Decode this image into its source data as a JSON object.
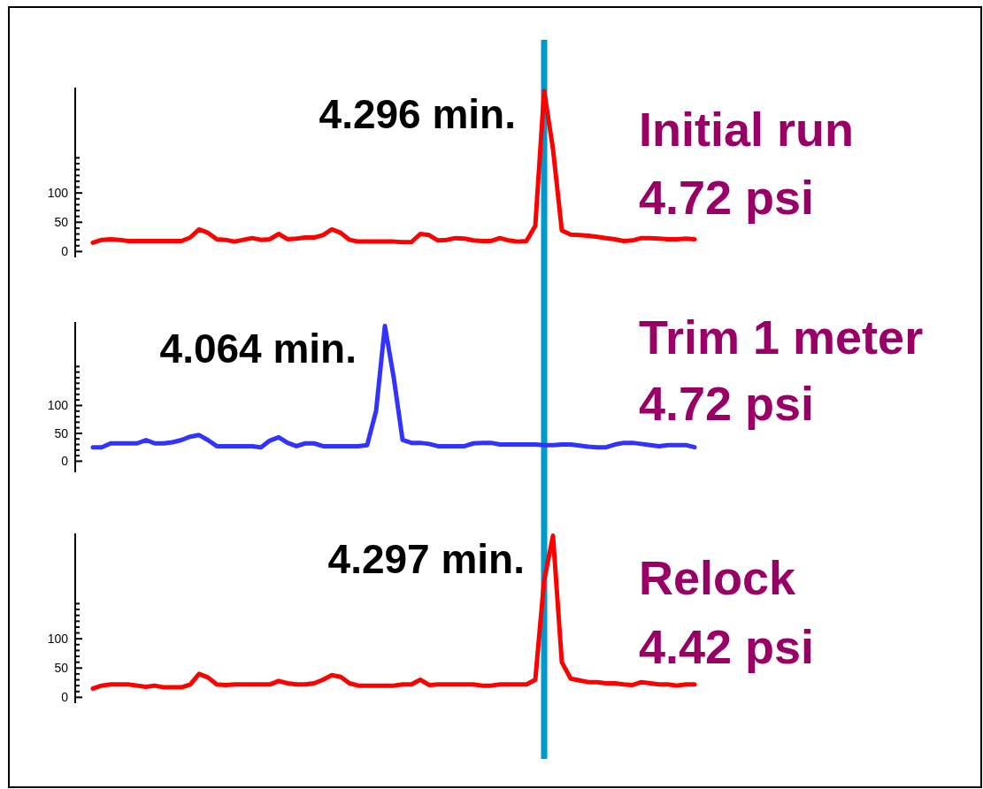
{
  "chart_data": [
    {
      "type": "line",
      "categories": [
        null,
        null,
        null,
        null,
        null,
        null,
        null,
        null,
        null,
        null,
        null,
        null,
        null,
        null,
        null,
        null,
        null,
        null,
        null,
        null,
        null,
        null,
        null,
        null,
        null,
        null,
        null,
        null,
        null,
        null,
        null,
        null,
        null,
        null,
        null,
        null,
        null,
        null,
        null,
        null,
        null,
        null,
        null,
        null,
        null,
        null,
        null,
        null,
        null,
        null,
        null,
        null,
        null,
        null,
        null,
        null,
        null,
        null,
        null,
        null,
        null,
        null,
        null,
        null,
        null,
        null,
        null,
        null,
        null
      ],
      "series": [
        {
          "color": "#ff0000",
          "values": [
            15,
            20,
            21,
            20,
            18,
            18,
            18,
            18,
            18,
            18,
            18,
            24,
            38,
            32,
            21,
            20,
            17,
            20,
            23,
            20,
            21,
            30,
            21,
            22,
            24,
            24,
            28,
            38,
            32,
            20,
            17,
            17,
            17,
            17,
            17,
            16,
            16,
            30,
            28,
            19,
            20,
            23,
            22,
            19,
            18,
            18,
            23,
            19,
            17,
            18,
            44,
            274,
            175,
            36,
            29,
            28,
            27,
            25,
            23,
            21,
            18,
            19,
            23,
            23,
            22,
            21,
            21,
            22,
            21
          ]
        }
      ],
      "ylim": [
        -10,
        280
      ],
      "yticks": [
        0,
        {
          "value": 10,
          "label": null
        },
        {
          "value": 20,
          "label": null
        },
        {
          "value": 30,
          "label": null
        },
        {
          "value": 40,
          "label": null
        },
        50,
        {
          "value": 60,
          "label": null
        },
        {
          "value": 70,
          "label": null
        },
        {
          "value": 80,
          "label": null
        },
        {
          "value": 90,
          "label": null
        },
        100,
        {
          "value": 110,
          "label": null
        },
        {
          "value": 120,
          "label": null
        },
        {
          "value": 130,
          "label": null
        },
        {
          "value": 140,
          "label": null
        },
        {
          "value": 150,
          "label": null
        },
        {
          "value": 160,
          "label": null
        }
      ],
      "tick_labels": "y",
      "annotations": [
        "4.296 min.",
        "Initial run",
        "4.72 psi"
      ]
    },
    {
      "type": "line",
      "categories": [
        null,
        null,
        null,
        null,
        null,
        null,
        null,
        null,
        null,
        null,
        null,
        null,
        null,
        null,
        null,
        null,
        null,
        null,
        null,
        null,
        null,
        null,
        null,
        null,
        null,
        null,
        null,
        null,
        null,
        null,
        null,
        null,
        null,
        null,
        null,
        null,
        null,
        null,
        null,
        null,
        null,
        null,
        null,
        null,
        null,
        null,
        null,
        null,
        null,
        null,
        null,
        null,
        null,
        null,
        null,
        null,
        null,
        null,
        null,
        null,
        null,
        null,
        null,
        null,
        null,
        null,
        null,
        null,
        null
      ],
      "series": [
        {
          "color": "#3333ff",
          "values": [
            25,
            25,
            32,
            32,
            32,
            32,
            38,
            32,
            32,
            34,
            38,
            44,
            47,
            38,
            27,
            27,
            27,
            27,
            27,
            25,
            37,
            43,
            33,
            27,
            32,
            32,
            27,
            27,
            27,
            27,
            27,
            29,
            90,
            243,
            150,
            38,
            33,
            33,
            31,
            27,
            27,
            27,
            27,
            32,
            33,
            33,
            30,
            30,
            30,
            30,
            30,
            29,
            29,
            30,
            30,
            28,
            26,
            25,
            25,
            30,
            33,
            33,
            31,
            29,
            27,
            29,
            29,
            29,
            25
          ]
        }
      ],
      "ylim": [
        -20,
        250
      ],
      "yticks": [
        0,
        {
          "value": 10,
          "label": null
        },
        {
          "value": 20,
          "label": null
        },
        {
          "value": 30,
          "label": null
        },
        {
          "value": 40,
          "label": null
        },
        50,
        {
          "value": 60,
          "label": null
        },
        {
          "value": 70,
          "label": null
        },
        {
          "value": 80,
          "label": null
        },
        {
          "value": 90,
          "label": null
        },
        100,
        {
          "value": 110,
          "label": null
        },
        {
          "value": 120,
          "label": null
        },
        {
          "value": 130,
          "label": null
        },
        {
          "value": 140,
          "label": null
        },
        {
          "value": 150,
          "label": null
        },
        {
          "value": 160,
          "label": null
        },
        {
          "value": 170,
          "label": null
        }
      ],
      "tick_labels": "y",
      "annotations": [
        "4.064 min.",
        "Trim 1 meter",
        "4.72 psi"
      ]
    },
    {
      "type": "line",
      "categories": [
        null,
        null,
        null,
        null,
        null,
        null,
        null,
        null,
        null,
        null,
        null,
        null,
        null,
        null,
        null,
        null,
        null,
        null,
        null,
        null,
        null,
        null,
        null,
        null,
        null,
        null,
        null,
        null,
        null,
        null,
        null,
        null,
        null,
        null,
        null,
        null,
        null,
        null,
        null,
        null,
        null,
        null,
        null,
        null,
        null,
        null,
        null,
        null,
        null,
        null,
        null,
        null,
        null,
        null,
        null,
        null,
        null,
        null,
        null,
        null,
        null,
        null,
        null,
        null,
        null,
        null,
        null,
        null,
        null
      ],
      "series": [
        {
          "color": "#ff0000",
          "values": [
            15,
            20,
            22,
            22,
            22,
            20,
            18,
            20,
            17,
            17,
            17,
            22,
            40,
            34,
            22,
            21,
            22,
            22,
            22,
            22,
            22,
            28,
            24,
            22,
            22,
            24,
            30,
            38,
            35,
            24,
            20,
            20,
            20,
            20,
            20,
            22,
            22,
            30,
            21,
            22,
            22,
            22,
            22,
            22,
            20,
            20,
            22,
            22,
            22,
            22,
            30,
            200,
            276,
            60,
            32,
            29,
            26,
            26,
            24,
            24,
            22,
            21,
            26,
            24,
            22,
            22,
            20,
            22,
            22
          ]
        }
      ],
      "ylim": [
        -10,
        280
      ],
      "yticks": [
        0,
        {
          "value": 10,
          "label": null
        },
        {
          "value": 20,
          "label": null
        },
        {
          "value": 30,
          "label": null
        },
        {
          "value": 40,
          "label": null
        },
        50,
        {
          "value": 60,
          "label": null
        },
        {
          "value": 70,
          "label": null
        },
        {
          "value": 80,
          "label": null
        },
        {
          "value": 90,
          "label": null
        },
        100,
        {
          "value": 110,
          "label": null
        },
        {
          "value": 120,
          "label": null
        },
        {
          "value": 130,
          "label": null
        },
        {
          "value": 140,
          "label": null
        },
        {
          "value": 150,
          "label": null
        },
        {
          "value": 160,
          "label": null
        }
      ],
      "tick_labels": "y",
      "annotations": [
        "4.297 min.",
        "Relock",
        "4.42 psi"
      ]
    }
  ]
}
